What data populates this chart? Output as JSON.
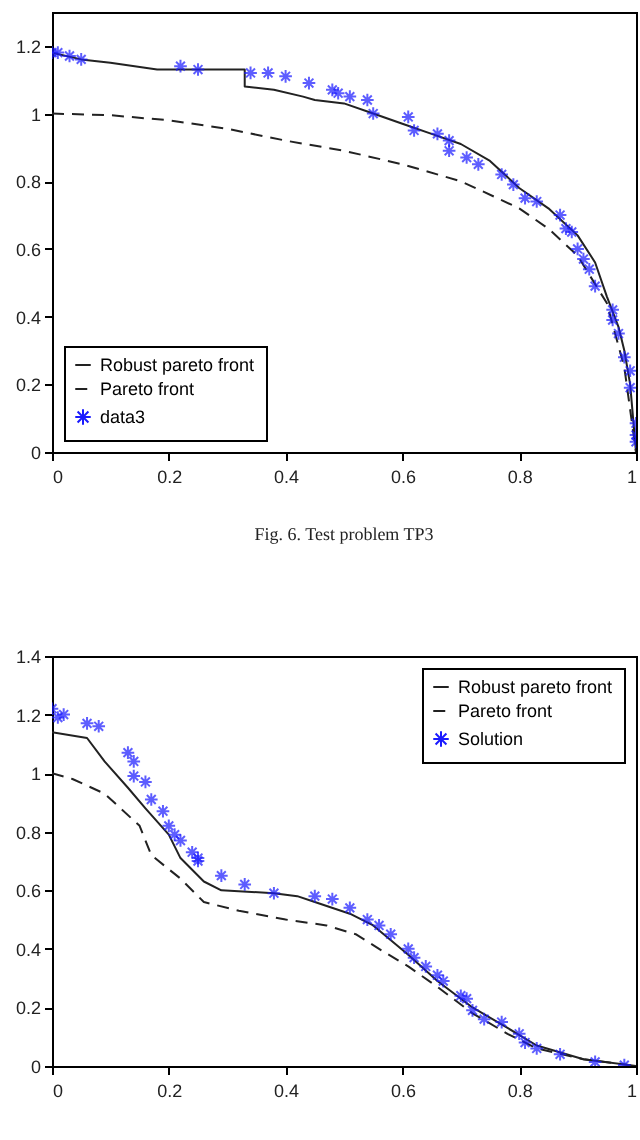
{
  "chart_data": [
    {
      "type": "line",
      "annotations": [
        "Fig. 6.  Test problem TP3"
      ],
      "xlim": [
        0,
        1
      ],
      "xticks": [
        0,
        0.2,
        0.4,
        0.6,
        0.8,
        1
      ],
      "ylim": [
        0,
        1.3
      ],
      "yticks": [
        0,
        0.2,
        0.4,
        0.6,
        0.8,
        1,
        1.2
      ],
      "legend": "bottom left",
      "series": [
        {
          "name": "Robust pareto front",
          "type": "line",
          "line_style": "solid",
          "marker": "none",
          "color": "#222222",
          "x": [
            0,
            0.05,
            0.1,
            0.18,
            0.33,
            0.33,
            0.38,
            0.43,
            0.45,
            0.5,
            0.55,
            0.6,
            0.65,
            0.7,
            0.75,
            0.8,
            0.85,
            0.9,
            0.93,
            0.95,
            0.97,
            0.98,
            0.99,
            1
          ],
          "values": [
            1.18,
            1.16,
            1.15,
            1.13,
            1.13,
            1.08,
            1.07,
            1.05,
            1.04,
            1.03,
            1.0,
            0.97,
            0.94,
            0.91,
            0.86,
            0.78,
            0.72,
            0.64,
            0.56,
            0.46,
            0.37,
            0.3,
            0.2,
            0
          ]
        },
        {
          "name": "Pareto front",
          "type": "line",
          "line_style": "dashed",
          "marker": "none",
          "color": "#222222",
          "x": [
            0,
            0.1,
            0.2,
            0.3,
            0.4,
            0.5,
            0.6,
            0.7,
            0.8,
            0.85,
            0.9,
            0.95,
            0.98,
            1
          ],
          "values": [
            1,
            0.995,
            0.98,
            0.955,
            0.92,
            0.89,
            0.85,
            0.8,
            0.72,
            0.66,
            0.58,
            0.44,
            0.25,
            0
          ]
        },
        {
          "name": "data3",
          "type": "scatter",
          "marker": "cross",
          "color": "#1a1aff",
          "x": [
            0,
            0.01,
            0.03,
            0.05,
            0.22,
            0.25,
            0.34,
            0.37,
            0.4,
            0.44,
            0.48,
            0.49,
            0.51,
            0.54,
            0.55,
            0.61,
            0.62,
            0.66,
            0.68,
            0.68,
            0.71,
            0.73,
            0.77,
            0.79,
            0.81,
            0.83,
            0.87,
            0.88,
            0.89,
            0.9,
            0.91,
            0.92,
            0.93,
            0.96,
            0.96,
            0.97,
            0.98,
            0.99,
            0.99,
            1,
            1,
            1
          ],
          "values": [
            1.18,
            1.18,
            1.17,
            1.16,
            1.14,
            1.13,
            1.12,
            1.12,
            1.11,
            1.09,
            1.07,
            1.06,
            1.05,
            1.04,
            1.0,
            0.99,
            0.95,
            0.94,
            0.92,
            0.89,
            0.87,
            0.85,
            0.82,
            0.79,
            0.75,
            0.74,
            0.7,
            0.66,
            0.65,
            0.6,
            0.57,
            0.54,
            0.49,
            0.42,
            0.39,
            0.35,
            0.28,
            0.24,
            0.19,
            0.085,
            0.05,
            0.03
          ]
        }
      ]
    },
    {
      "type": "line",
      "xlim": [
        0,
        1
      ],
      "xticks": [
        0,
        0.2,
        0.4,
        0.6,
        0.8,
        1
      ],
      "ylim": [
        0,
        1.4
      ],
      "yticks": [
        0,
        0.2,
        0.4,
        0.6,
        0.8,
        1,
        1.2,
        1.4
      ],
      "legend": "top right",
      "series": [
        {
          "name": "Robust pareto front",
          "type": "line",
          "line_style": "solid",
          "marker": "none",
          "color": "#222222",
          "x": [
            0,
            0.06,
            0.09,
            0.13,
            0.16,
            0.2,
            0.22,
            0.26,
            0.29,
            0.38,
            0.42,
            0.45,
            0.51,
            0.55,
            0.61,
            0.66,
            0.72,
            0.78,
            0.83,
            0.91,
            0.99,
            1
          ],
          "values": [
            1.14,
            1.12,
            1.04,
            0.95,
            0.88,
            0.79,
            0.71,
            0.63,
            0.6,
            0.59,
            0.58,
            0.56,
            0.52,
            0.48,
            0.38,
            0.29,
            0.2,
            0.13,
            0.07,
            0.023,
            0.003,
            0
          ]
        },
        {
          "name": "Pareto front",
          "type": "line",
          "line_style": "dashed",
          "marker": "none",
          "color": "#222222",
          "x": [
            0,
            0.035,
            0.09,
            0.15,
            0.17,
            0.22,
            0.26,
            0.32,
            0.4,
            0.47,
            0.52,
            0.56,
            0.61,
            0.66,
            0.72,
            0.78,
            0.83,
            0.91,
            1
          ],
          "values": [
            1.0,
            0.98,
            0.93,
            0.82,
            0.72,
            0.64,
            0.56,
            0.53,
            0.5,
            0.48,
            0.45,
            0.4,
            0.34,
            0.27,
            0.18,
            0.11,
            0.06,
            0.023,
            0
          ]
        },
        {
          "name": "Solution",
          "type": "scatter",
          "marker": "cross",
          "color": "#1a1aff",
          "x": [
            0,
            0.01,
            0.02,
            0.06,
            0.08,
            0.13,
            0.14,
            0.14,
            0.16,
            0.17,
            0.19,
            0.2,
            0.21,
            0.22,
            0.24,
            0.25,
            0.25,
            0.29,
            0.33,
            0.38,
            0.45,
            0.48,
            0.51,
            0.54,
            0.56,
            0.58,
            0.61,
            0.62,
            0.64,
            0.66,
            0.67,
            0.7,
            0.71,
            0.72,
            0.74,
            0.77,
            0.8,
            0.81,
            0.83,
            0.87,
            0.93,
            0.98
          ],
          "values": [
            1.22,
            1.19,
            1.2,
            1.17,
            1.16,
            1.07,
            1.04,
            0.99,
            0.97,
            0.91,
            0.87,
            0.82,
            0.79,
            0.77,
            0.73,
            0.71,
            0.7,
            0.65,
            0.62,
            0.59,
            0.58,
            0.57,
            0.54,
            0.5,
            0.48,
            0.45,
            0.4,
            0.37,
            0.34,
            0.31,
            0.29,
            0.24,
            0.23,
            0.19,
            0.16,
            0.15,
            0.11,
            0.08,
            0.06,
            0.04,
            0.014,
            0.003
          ]
        }
      ]
    }
  ]
}
